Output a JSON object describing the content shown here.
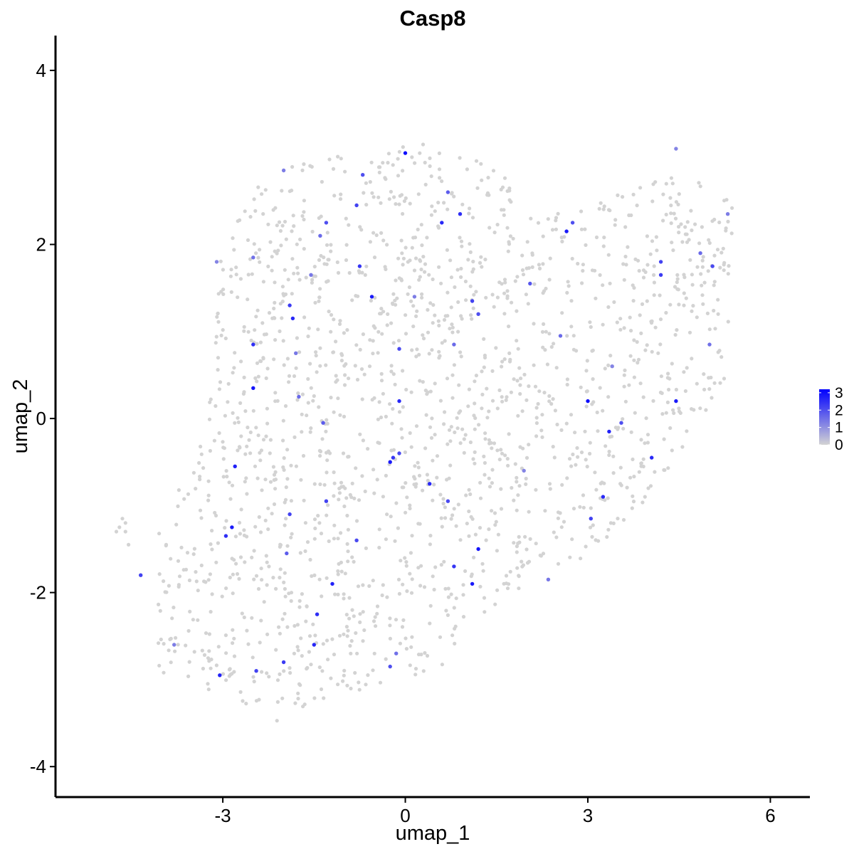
{
  "chart_data": {
    "type": "scatter",
    "title": "Casp8",
    "xlabel": "umap_1",
    "ylabel": "umap_2",
    "xlim": [
      -5.75,
      6.65
    ],
    "ylim": [
      -4.35,
      4.4
    ],
    "x_ticks": [
      -3,
      0,
      3,
      6
    ],
    "y_ticks": [
      -4,
      -2,
      0,
      2,
      4
    ],
    "x_tick_labels": [
      "-3",
      "0",
      "3",
      "6"
    ],
    "y_tick_labels": [
      "-4",
      "-2",
      "0",
      "2",
      "4"
    ],
    "grid": false,
    "legend": {
      "placement": "right",
      "type": "colorbar",
      "labels": [
        "3",
        "2",
        "1",
        "0"
      ],
      "values": [
        3,
        2,
        1,
        0
      ],
      "range": [
        0,
        3.2
      ],
      "color_low": "#d3d3d3",
      "color_high": "#0000ff"
    },
    "highlight_points": [
      {
        "x": 0.0,
        "y": 3.05,
        "v": 3.0
      },
      {
        "x": 0.6,
        "y": 2.25,
        "v": 2.6
      },
      {
        "x": 0.9,
        "y": 2.35,
        "v": 2.5
      },
      {
        "x": 0.7,
        "y": 2.6,
        "v": 1.8
      },
      {
        "x": -0.8,
        "y": 2.45,
        "v": 2.2
      },
      {
        "x": -0.7,
        "y": 2.8,
        "v": 2.0
      },
      {
        "x": -1.3,
        "y": 2.25,
        "v": 2.0
      },
      {
        "x": -2.0,
        "y": 2.85,
        "v": 1.3
      },
      {
        "x": -0.75,
        "y": 1.75,
        "v": 2.4
      },
      {
        "x": -0.55,
        "y": 1.4,
        "v": 2.8
      },
      {
        "x": -1.9,
        "y": 1.3,
        "v": 2.3
      },
      {
        "x": -1.85,
        "y": 1.15,
        "v": 2.6
      },
      {
        "x": -2.5,
        "y": 0.85,
        "v": 2.5
      },
      {
        "x": -2.5,
        "y": 0.35,
        "v": 2.9
      },
      {
        "x": -1.55,
        "y": 1.65,
        "v": 1.4
      },
      {
        "x": -2.5,
        "y": 1.85,
        "v": 1.5
      },
      {
        "x": -3.1,
        "y": 1.8,
        "v": 1.2
      },
      {
        "x": -1.4,
        "y": 2.1,
        "v": 1.6
      },
      {
        "x": 0.15,
        "y": 1.4,
        "v": 1.3
      },
      {
        "x": 1.2,
        "y": 1.2,
        "v": 2.0
      },
      {
        "x": 1.1,
        "y": 1.35,
        "v": 2.2
      },
      {
        "x": 0.8,
        "y": 0.85,
        "v": 1.6
      },
      {
        "x": -0.1,
        "y": 0.8,
        "v": 2.1
      },
      {
        "x": -0.1,
        "y": 0.2,
        "v": 2.6
      },
      {
        "x": -0.2,
        "y": -0.45,
        "v": 2.4
      },
      {
        "x": -0.1,
        "y": -0.4,
        "v": 2.1
      },
      {
        "x": -0.25,
        "y": -0.5,
        "v": 2.8
      },
      {
        "x": 0.4,
        "y": -0.75,
        "v": 2.6
      },
      {
        "x": 0.7,
        "y": -0.95,
        "v": 2.1
      },
      {
        "x": 1.2,
        "y": -1.5,
        "v": 2.9
      },
      {
        "x": 0.8,
        "y": -1.7,
        "v": 2.4
      },
      {
        "x": 1.1,
        "y": -1.9,
        "v": 2.8
      },
      {
        "x": -0.8,
        "y": -1.4,
        "v": 2.1
      },
      {
        "x": -1.2,
        "y": -1.9,
        "v": 2.7
      },
      {
        "x": -1.45,
        "y": -2.25,
        "v": 2.5
      },
      {
        "x": -1.5,
        "y": -2.6,
        "v": 2.6
      },
      {
        "x": -2.0,
        "y": -2.8,
        "v": 2.3
      },
      {
        "x": -2.45,
        "y": -2.9,
        "v": 2.2
      },
      {
        "x": -3.05,
        "y": -2.95,
        "v": 2.7
      },
      {
        "x": -1.95,
        "y": -1.55,
        "v": 1.8
      },
      {
        "x": -1.9,
        "y": -1.1,
        "v": 2.2
      },
      {
        "x": -2.85,
        "y": -1.25,
        "v": 2.8
      },
      {
        "x": -2.95,
        "y": -1.35,
        "v": 2.5
      },
      {
        "x": -2.8,
        "y": -0.55,
        "v": 2.7
      },
      {
        "x": -4.35,
        "y": -1.8,
        "v": 2.2
      },
      {
        "x": -3.8,
        "y": -2.6,
        "v": 1.3
      },
      {
        "x": -1.3,
        "y": -0.95,
        "v": 2.2
      },
      {
        "x": -1.35,
        "y": -0.05,
        "v": 1.8
      },
      {
        "x": -1.75,
        "y": 0.25,
        "v": 1.6
      },
      {
        "x": -1.8,
        "y": 0.75,
        "v": 1.4
      },
      {
        "x": -0.25,
        "y": -2.85,
        "v": 2.0
      },
      {
        "x": -0.15,
        "y": -2.7,
        "v": 1.5
      },
      {
        "x": 2.65,
        "y": 2.15,
        "v": 2.8
      },
      {
        "x": 2.75,
        "y": 2.25,
        "v": 2.0
      },
      {
        "x": 2.05,
        "y": 1.55,
        "v": 1.9
      },
      {
        "x": 2.55,
        "y": 0.95,
        "v": 1.6
      },
      {
        "x": 3.0,
        "y": 0.2,
        "v": 3.0
      },
      {
        "x": 3.35,
        "y": -0.15,
        "v": 2.7
      },
      {
        "x": 3.55,
        "y": -0.05,
        "v": 2.0
      },
      {
        "x": 4.05,
        "y": -0.45,
        "v": 2.6
      },
      {
        "x": 4.45,
        "y": 0.2,
        "v": 2.8
      },
      {
        "x": 4.2,
        "y": 1.65,
        "v": 2.3
      },
      {
        "x": 4.2,
        "y": 1.8,
        "v": 2.2
      },
      {
        "x": 3.25,
        "y": -0.9,
        "v": 2.6
      },
      {
        "x": 3.05,
        "y": -1.15,
        "v": 2.2
      },
      {
        "x": 2.35,
        "y": -1.85,
        "v": 1.4
      },
      {
        "x": 5.05,
        "y": 1.75,
        "v": 2.1
      },
      {
        "x": 5.0,
        "y": 0.85,
        "v": 1.5
      },
      {
        "x": 4.85,
        "y": 1.9,
        "v": 1.6
      },
      {
        "x": 4.45,
        "y": 3.1,
        "v": 1.2
      },
      {
        "x": 5.3,
        "y": 2.35,
        "v": 1.3
      },
      {
        "x": 3.4,
        "y": 0.6,
        "v": 1.2
      },
      {
        "x": 1.95,
        "y": -0.6,
        "v": 1.2
      }
    ],
    "background_points": {
      "count": 1750,
      "value": 0,
      "region": [
        [
          -4.1,
          -3.0
        ],
        [
          -4.05,
          -1.3
        ],
        [
          -3.3,
          -0.2
        ],
        [
          -3.05,
          1.9
        ],
        [
          -2.25,
          2.9
        ],
        [
          -1.5,
          3.05
        ],
        [
          0.3,
          3.15
        ],
        [
          1.55,
          2.9
        ],
        [
          1.9,
          2.35
        ],
        [
          2.85,
          2.4
        ],
        [
          4.6,
          2.95
        ],
        [
          5.4,
          2.45
        ],
        [
          5.3,
          0.45
        ],
        [
          4.1,
          -0.85
        ],
        [
          3.1,
          -1.55
        ],
        [
          1.6,
          -2.05
        ],
        [
          0.65,
          -2.85
        ],
        [
          -0.4,
          -3.05
        ],
        [
          -2.2,
          -3.5
        ],
        [
          -3.1,
          -3.15
        ]
      ],
      "extras": [
        {
          "x": -4.7,
          "y": -1.25
        },
        {
          "x": -4.65,
          "y": -1.15
        },
        {
          "x": -4.6,
          "y": -1.3
        },
        {
          "x": -4.55,
          "y": -1.45
        },
        {
          "x": -4.75,
          "y": -1.3
        },
        {
          "x": -4.6,
          "y": -1.2
        }
      ]
    }
  }
}
